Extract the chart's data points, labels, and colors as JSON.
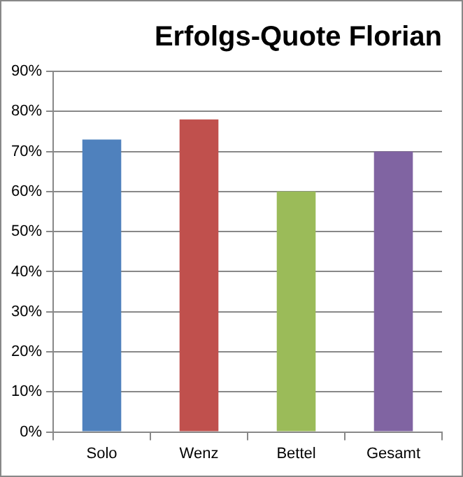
{
  "chart_data": {
    "type": "bar",
    "title": "Erfolgs-Quote Florian",
    "categories": [
      "Solo",
      "Wenz",
      "Bettel",
      "Gesamt"
    ],
    "values": [
      73,
      78,
      60,
      70
    ],
    "colors": [
      "#4f81bd",
      "#c0504d",
      "#9bbb59",
      "#8064a2"
    ],
    "ylim": [
      0,
      90
    ],
    "yticks": [
      {
        "value": 0,
        "label": "0%"
      },
      {
        "value": 10,
        "label": "10%"
      },
      {
        "value": 20,
        "label": "20%"
      },
      {
        "value": 30,
        "label": "30%"
      },
      {
        "value": 40,
        "label": "40%"
      },
      {
        "value": 50,
        "label": "50%"
      },
      {
        "value": 60,
        "label": "60%"
      },
      {
        "value": 70,
        "label": "70%"
      },
      {
        "value": 80,
        "label": "80%"
      },
      {
        "value": 90,
        "label": "90%"
      }
    ],
    "grid": "y",
    "legend": false
  }
}
